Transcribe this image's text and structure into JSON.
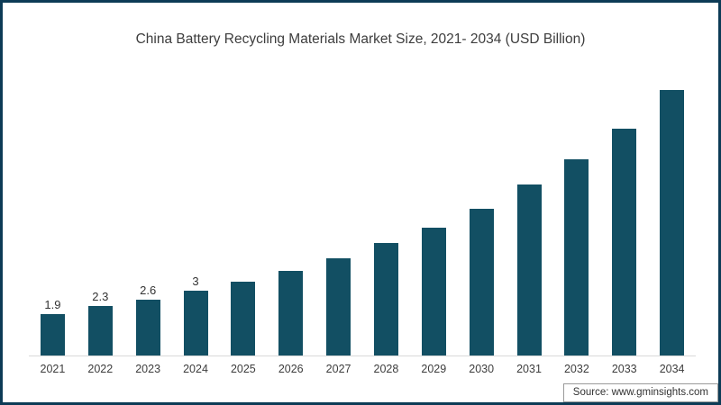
{
  "chart_data": {
    "type": "bar",
    "title": "China Battery Recycling Materials Market Size, 2021- 2034 (USD Billion)",
    "categories": [
      "2021",
      "2022",
      "2023",
      "2024",
      "2025",
      "2026",
      "2027",
      "2028",
      "2029",
      "2030",
      "2031",
      "2032",
      "2033",
      "2034"
    ],
    "values": [
      1.9,
      2.3,
      2.6,
      3,
      3.4,
      3.9,
      4.5,
      5.2,
      5.9,
      6.8,
      7.9,
      9.1,
      10.5,
      12.3
    ],
    "data_labels": [
      "1.9",
      "2.3",
      "2.6",
      "3",
      "",
      "",
      "",
      "",
      "",
      "",
      "",
      "",
      "",
      ""
    ],
    "xlabel": "",
    "ylabel": "",
    "ylim": [
      0,
      13
    ],
    "grid": false,
    "legend": false,
    "bar_color": "#124f63"
  },
  "source": {
    "text": "Source: www.gminsights.com"
  },
  "colors": {
    "frame_border": "#0d3b56",
    "axis_line": "#d9d9d9",
    "text": "#3d3d3d",
    "source_border": "#9a9a9a"
  }
}
